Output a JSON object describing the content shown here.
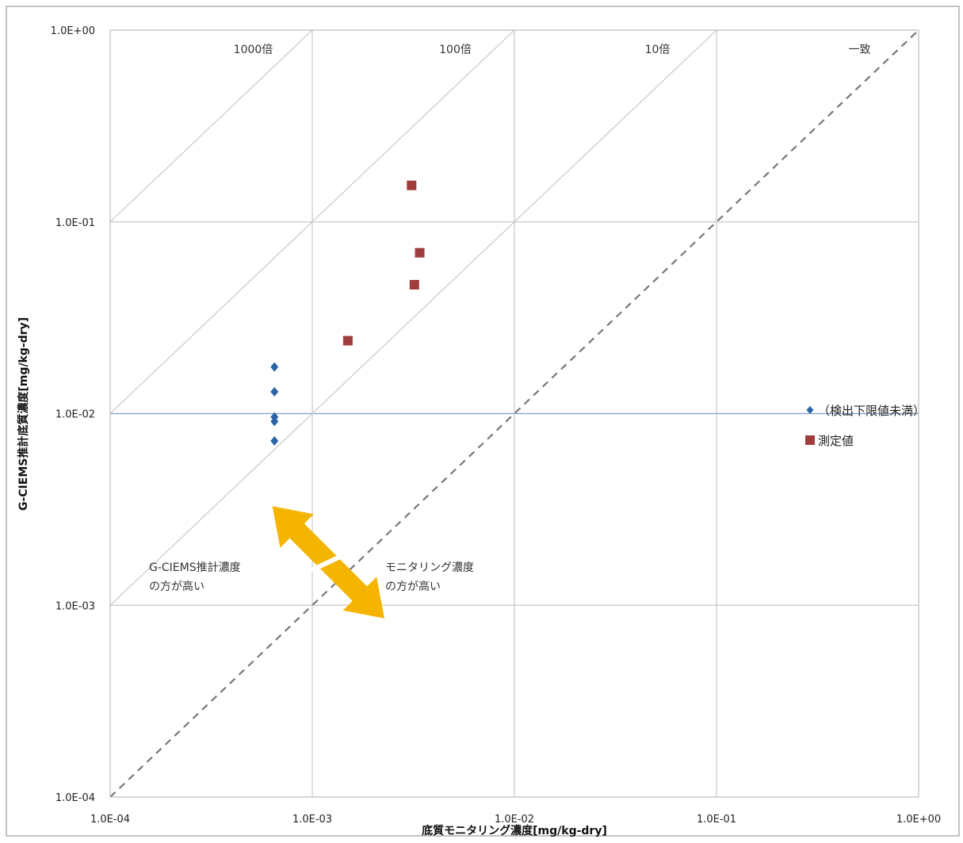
{
  "chart_data": {
    "type": "scatter",
    "x_scale": "log",
    "y_scale": "log",
    "xlim": [
      0.0001,
      1
    ],
    "ylim": [
      0.0001,
      1
    ],
    "grid": true,
    "xlabel": "底質モニタリング濃度[mg/kg-dry]",
    "ylabel": "G-CIEMS推計底質濃度[mg/kg-dry]",
    "x_ticks": [
      {
        "value": 0.0001,
        "label": "1.0E-04"
      },
      {
        "value": 0.001,
        "label": "1.0E-03"
      },
      {
        "value": 0.01,
        "label": "1.0E-02"
      },
      {
        "value": 0.1,
        "label": "1.0E-01"
      },
      {
        "value": 1,
        "label": "1.0E+00"
      }
    ],
    "y_ticks": [
      {
        "value": 0.0001,
        "label": "1.0E-04"
      },
      {
        "value": 0.001,
        "label": "1.0E-03"
      },
      {
        "value": 0.01,
        "label": "1.0E-02"
      },
      {
        "value": 0.1,
        "label": "1.0E-01"
      },
      {
        "value": 1,
        "label": "1.0E+00"
      }
    ],
    "reference_lines": [
      {
        "factor": 1000,
        "label": "1000倍",
        "style": "solid"
      },
      {
        "factor": 100,
        "label": "100倍",
        "style": "solid"
      },
      {
        "factor": 10,
        "label": "10倍",
        "style": "solid"
      },
      {
        "factor": 1,
        "label": "一致",
        "style": "dashed"
      }
    ],
    "horizontal_line": {
      "y": 0.01,
      "color": "#7fa7d8"
    },
    "series": [
      {
        "name": "（検出下限値未満）",
        "marker": "diamond",
        "color": "#2e62a6",
        "points": [
          {
            "x": 0.00065,
            "y": 0.0175
          },
          {
            "x": 0.00065,
            "y": 0.013
          },
          {
            "x": 0.00065,
            "y": 0.0096
          },
          {
            "x": 0.00065,
            "y": 0.0091
          },
          {
            "x": 0.00065,
            "y": 0.0072
          }
        ]
      },
      {
        "name": "測定値",
        "marker": "square",
        "color": "#a13c3c",
        "points": [
          {
            "x": 0.0031,
            "y": 0.155
          },
          {
            "x": 0.0034,
            "y": 0.069
          },
          {
            "x": 0.0032,
            "y": 0.047
          },
          {
            "x": 0.0015,
            "y": 0.024
          }
        ]
      }
    ],
    "legend_position": "right",
    "annotations": [
      {
        "id": "left",
        "lines": [
          "G-CIEMS推計濃度",
          "の方が高い"
        ]
      },
      {
        "id": "right",
        "lines": [
          "モニタリング濃度",
          "の方が高い"
        ]
      }
    ],
    "arrow_color": "#f5b400"
  }
}
